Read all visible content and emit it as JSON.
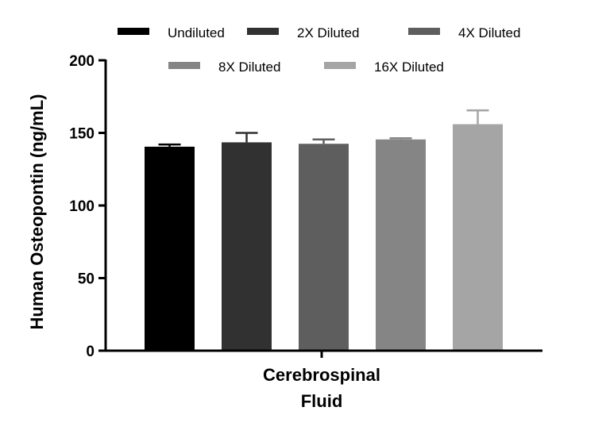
{
  "chart_data": {
    "type": "bar",
    "title": "",
    "xlabel": "",
    "ylabel": "Human Osteopontin (ng/mL)",
    "x_category_label": [
      "Cerebrospinal",
      "Fluid"
    ],
    "ylim": [
      0,
      200
    ],
    "yticks": [
      0,
      50,
      100,
      150,
      200
    ],
    "grid": false,
    "legend_position": "top",
    "series": [
      {
        "name": "Undiluted",
        "value": 140.5,
        "error": 1.5,
        "color": "#000000"
      },
      {
        "name": "2X Diluted",
        "value": 143.5,
        "error": 6.5,
        "color": "#313131"
      },
      {
        "name": "4X Diluted",
        "value": 142.5,
        "error": 3.0,
        "color": "#5e5e5e"
      },
      {
        "name": "8X Diluted",
        "value": 145.5,
        "error": 0.8,
        "color": "#858585"
      },
      {
        "name": "16X Diluted",
        "value": 156.0,
        "error": 9.5,
        "color": "#a5a5a5"
      }
    ]
  }
}
